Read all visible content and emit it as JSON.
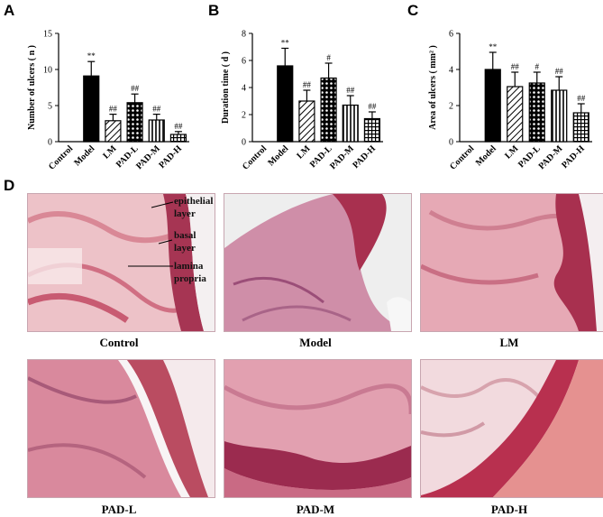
{
  "panel_letters": [
    "A",
    "B",
    "C",
    "D"
  ],
  "chart_data": [
    {
      "type": "bar",
      "categories": [
        "Control",
        "Model",
        "LM",
        "PAD-L",
        "PAD-M",
        "PAD-H"
      ],
      "values": [
        0,
        9.1,
        2.9,
        5.4,
        3.0,
        1.0
      ],
      "errors": [
        0,
        2.0,
        0.9,
        1.2,
        0.8,
        0.4
      ],
      "significance": [
        "",
        "**",
        "##",
        "##",
        "##",
        "##"
      ],
      "ylabel": "Number of ulcers ( n )",
      "ylim": [
        0,
        15
      ],
      "yticks": [
        "0",
        "5",
        "10",
        "15"
      ],
      "fills": [
        "solid",
        "solid",
        "diag-right",
        "crosshatch",
        "vertical",
        "grid"
      ],
      "colors": {
        "bar": "#000000"
      }
    },
    {
      "type": "bar",
      "categories": [
        "Control",
        "Model",
        "LM",
        "PAD-L",
        "PAD-M",
        "PAD-H"
      ],
      "values": [
        0,
        5.6,
        3.0,
        4.7,
        2.7,
        1.7
      ],
      "errors": [
        0,
        1.3,
        0.8,
        1.1,
        0.7,
        0.5
      ],
      "significance": [
        "",
        "**",
        "##",
        "#",
        "##",
        "##"
      ],
      "ylabel": "Duration time ( d )",
      "ylim": [
        0,
        8
      ],
      "yticks": [
        "0",
        "2",
        "4",
        "6",
        "8"
      ],
      "fills": [
        "solid",
        "solid",
        "diag-right",
        "crosshatch",
        "vertical",
        "grid"
      ],
      "colors": {
        "bar": "#000000"
      }
    },
    {
      "type": "bar",
      "categories": [
        "Control",
        "Model",
        "LM",
        "PAD-L",
        "PAD-M",
        "PAD-H"
      ],
      "values": [
        0,
        4.0,
        3.05,
        3.25,
        2.85,
        1.6
      ],
      "errors": [
        0,
        0.95,
        0.8,
        0.6,
        0.75,
        0.5
      ],
      "significance": [
        "",
        "**",
        "##",
        "#",
        "##",
        "##"
      ],
      "ylabel": "Area of ulcers ( mm² )",
      "ylim": [
        0,
        6
      ],
      "yticks": [
        "0",
        "2",
        "4",
        "6"
      ],
      "fills": [
        "solid",
        "solid",
        "diag-right",
        "crosshatch",
        "vertical",
        "grid"
      ],
      "colors": {
        "bar": "#000000"
      }
    }
  ],
  "micrographs": [
    {
      "caption": "Control",
      "annotations": [
        "epithelial",
        "layer",
        "basal",
        "layer",
        "lamina",
        "propria"
      ]
    },
    {
      "caption": "Model"
    },
    {
      "caption": "LM"
    },
    {
      "caption": "PAD-L"
    },
    {
      "caption": "PAD-M"
    },
    {
      "caption": "PAD-H"
    }
  ],
  "colors": {
    "stain_pink": "#e8a3b0",
    "stain_dark": "#a8304f",
    "tissue_bg": "#f3e4e6"
  }
}
